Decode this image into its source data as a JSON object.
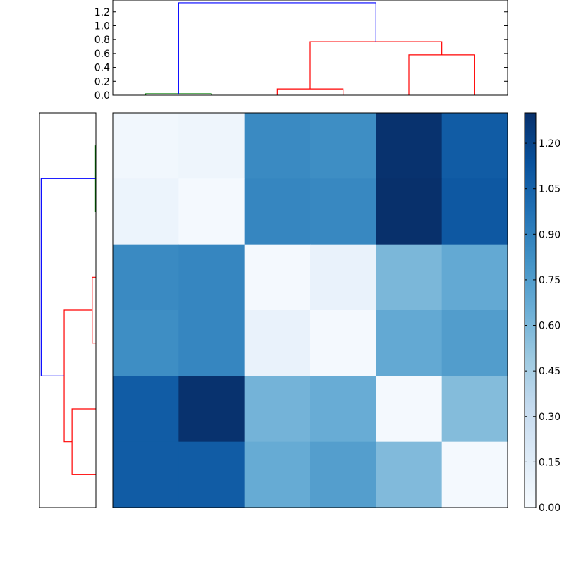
{
  "colors": {
    "cmap_low": "#f7fbff",
    "cmap_mid": "#6baed6",
    "cmap_high": "#08306b",
    "link_green": "#008000",
    "link_red": "#ff0000",
    "link_blue": "#0000ff",
    "frame": "#000000"
  },
  "chart_data": [
    {
      "type": "dendrogram",
      "orientation": "top",
      "ylim": [
        0,
        1.37
      ],
      "yticks": [
        "0.0",
        "0.2",
        "0.4",
        "0.6",
        "0.8",
        "1.0",
        "1.2"
      ],
      "leaf_positions": [
        0.5,
        1.5,
        2.5,
        3.5,
        4.5,
        5.5
      ],
      "merges": [
        {
          "a": 0,
          "b": 1,
          "height": 0.02,
          "color": "green"
        },
        {
          "a": 2,
          "b": 3,
          "height": 0.09,
          "color": "red"
        },
        {
          "a": 4,
          "b": 5,
          "height": 0.58,
          "color": "red"
        },
        {
          "a": 7,
          "b": 8,
          "height": 0.77,
          "color": "red"
        },
        {
          "a": 6,
          "b": 9,
          "height": 1.33,
          "color": "blue"
        }
      ]
    },
    {
      "type": "dendrogram",
      "orientation": "left",
      "xlim": [
        1.37,
        0
      ],
      "leaf_positions": [
        0.5,
        1.5,
        2.5,
        3.5,
        4.5,
        5.5
      ],
      "merges": [
        {
          "a": 0,
          "b": 1,
          "height": 0.01,
          "color": "green"
        },
        {
          "a": 2,
          "b": 3,
          "height": 0.09,
          "color": "red"
        },
        {
          "a": 4,
          "b": 5,
          "height": 0.58,
          "color": "red"
        },
        {
          "a": 7,
          "b": 8,
          "height": 0.77,
          "color": "red"
        },
        {
          "a": 6,
          "b": 9,
          "height": 1.33,
          "color": "blue"
        }
      ]
    },
    {
      "type": "heatmap",
      "colormap": "Blues",
      "vmin": 0.0,
      "vmax": 1.3,
      "values": [
        [
          0.04,
          0.06,
          0.85,
          0.83,
          1.29,
          1.08
        ],
        [
          0.07,
          0.02,
          0.87,
          0.86,
          1.3,
          1.1
        ],
        [
          0.85,
          0.87,
          0.02,
          0.09,
          0.6,
          0.68
        ],
        [
          0.83,
          0.87,
          0.09,
          0.02,
          0.68,
          0.75
        ],
        [
          1.08,
          1.29,
          0.62,
          0.66,
          0.02,
          0.57
        ],
        [
          1.08,
          1.08,
          0.67,
          0.74,
          0.58,
          0.02
        ]
      ]
    },
    {
      "type": "colorbar",
      "range": [
        0.0,
        1.3
      ],
      "ticks": [
        "0.00",
        "0.15",
        "0.30",
        "0.45",
        "0.60",
        "0.75",
        "0.90",
        "1.05",
        "1.20"
      ]
    }
  ]
}
